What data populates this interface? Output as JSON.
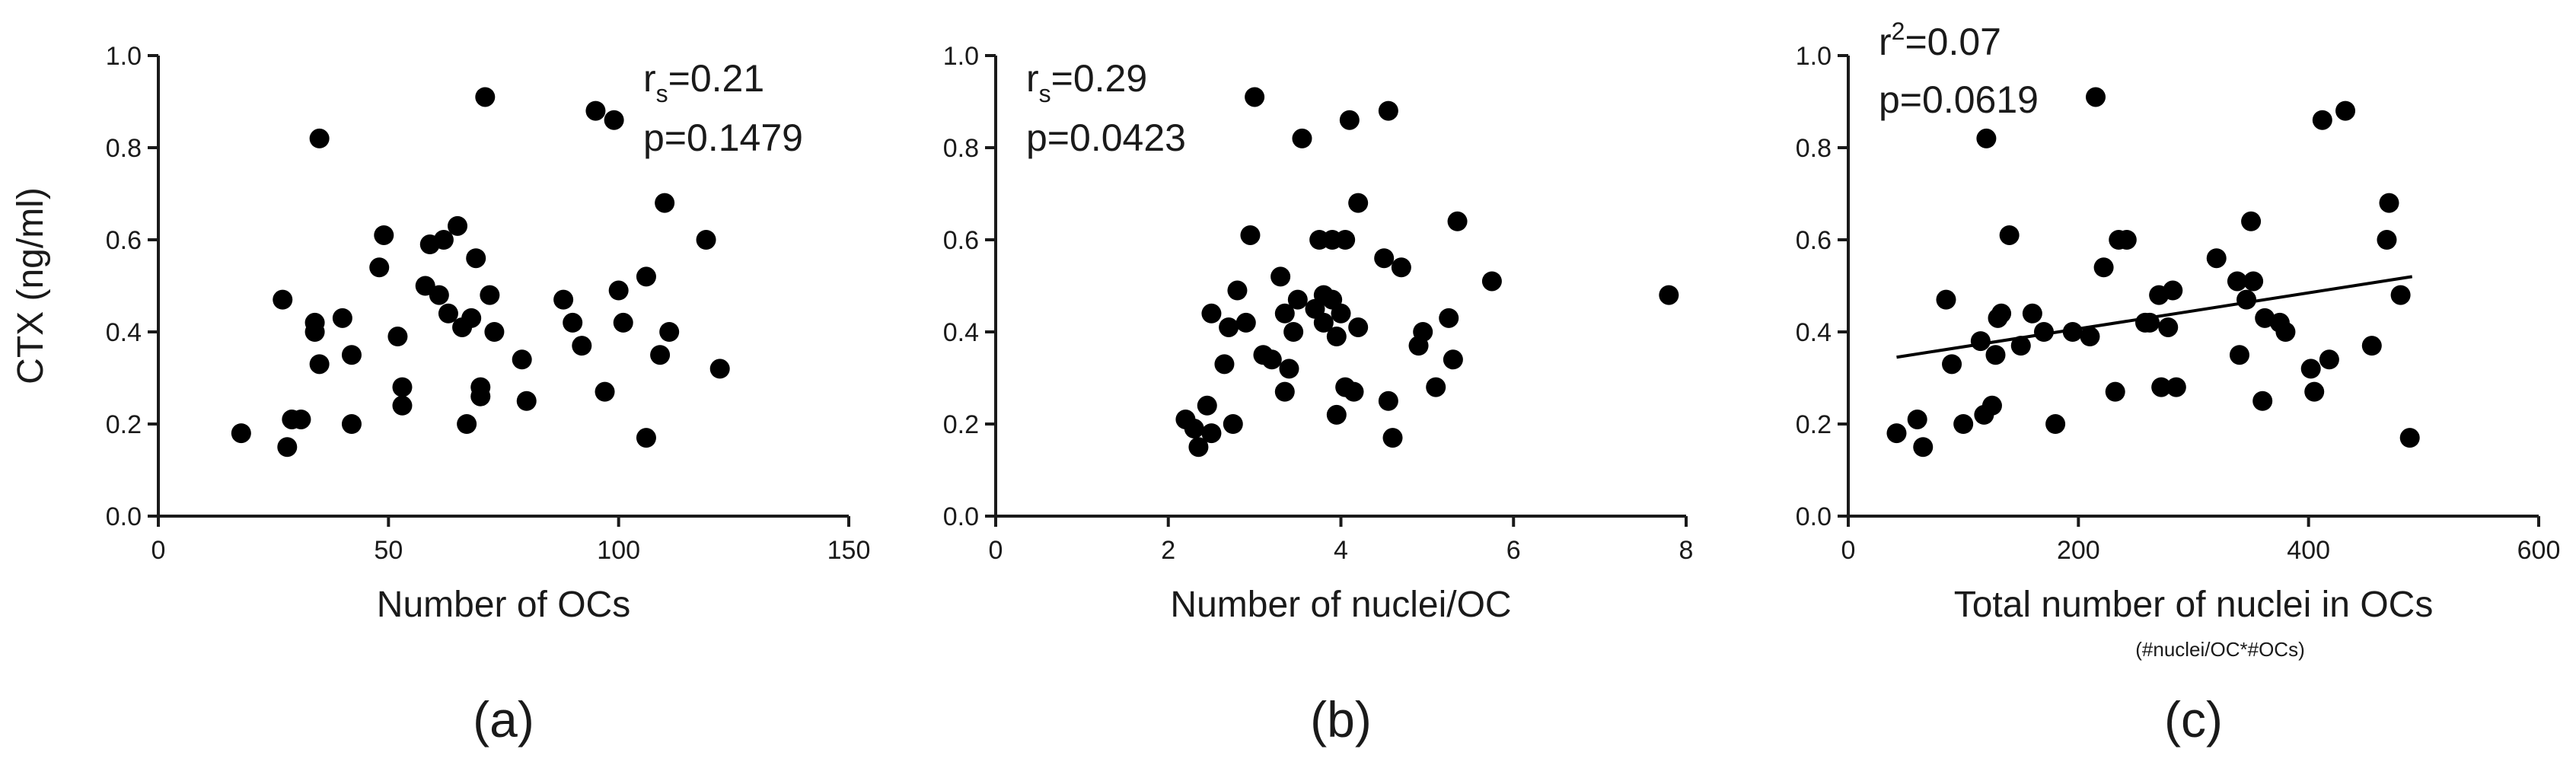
{
  "colors": {
    "marker": "#000000",
    "axis": "#1a1a1a"
  },
  "chart_data": [
    {
      "type": "scatter",
      "panel_label": "(a)",
      "xlabel": "Number of OCs",
      "xsublabel": "",
      "ylabel": "CTX (ng/ml)",
      "xlim": [
        0,
        150
      ],
      "ylim": [
        0.0,
        1.0
      ],
      "x_ticks": [
        0,
        50,
        100,
        150
      ],
      "y_ticks": [
        0.0,
        0.2,
        0.4,
        0.6,
        0.8,
        1.0
      ],
      "x_tick_labels": [
        "0",
        "50",
        "100",
        "150"
      ],
      "y_tick_labels": [
        "0.0",
        "0.2",
        "0.4",
        "0.6",
        "0.8",
        "1.0"
      ],
      "stat_line1": {
        "main": "r",
        "sub": "s",
        "rest": "=0.21"
      },
      "stat_line2": "p=0.1479",
      "stat_position": "top-right",
      "grid": false,
      "fit_line": null,
      "points": [
        [
          18,
          0.18
        ],
        [
          27,
          0.47
        ],
        [
          28,
          0.15
        ],
        [
          29,
          0.21
        ],
        [
          31,
          0.21
        ],
        [
          34,
          0.42
        ],
        [
          34,
          0.4
        ],
        [
          35,
          0.33
        ],
        [
          35,
          0.82
        ],
        [
          40,
          0.43
        ],
        [
          42,
          0.35
        ],
        [
          42,
          0.2
        ],
        [
          48,
          0.54
        ],
        [
          49,
          0.61
        ],
        [
          52,
          0.39
        ],
        [
          53,
          0.24
        ],
        [
          53,
          0.28
        ],
        [
          58,
          0.5
        ],
        [
          59,
          0.59
        ],
        [
          61,
          0.48
        ],
        [
          62,
          0.6
        ],
        [
          63,
          0.44
        ],
        [
          65,
          0.63
        ],
        [
          66,
          0.41
        ],
        [
          67,
          0.2
        ],
        [
          68,
          0.43
        ],
        [
          69,
          0.56
        ],
        [
          70,
          0.28
        ],
        [
          70,
          0.26
        ],
        [
          71,
          0.91
        ],
        [
          72,
          0.48
        ],
        [
          73,
          0.4
        ],
        [
          79,
          0.34
        ],
        [
          80,
          0.25
        ],
        [
          88,
          0.47
        ],
        [
          90,
          0.42
        ],
        [
          92,
          0.37
        ],
        [
          95,
          0.88
        ],
        [
          97,
          0.27
        ],
        [
          99,
          0.86
        ],
        [
          100,
          0.49
        ],
        [
          101,
          0.42
        ],
        [
          106,
          0.17
        ],
        [
          106,
          0.52
        ],
        [
          109,
          0.35
        ],
        [
          110,
          0.68
        ],
        [
          111,
          0.4
        ],
        [
          119,
          0.6
        ],
        [
          122,
          0.32
        ]
      ]
    },
    {
      "type": "scatter",
      "panel_label": "(b)",
      "xlabel": "Number of nuclei/OC",
      "xsublabel": "",
      "ylabel": "",
      "xlim": [
        0,
        8
      ],
      "ylim": [
        0.0,
        1.0
      ],
      "x_ticks": [
        0,
        2,
        4,
        6,
        8
      ],
      "y_ticks": [
        0.0,
        0.2,
        0.4,
        0.6,
        0.8,
        1.0
      ],
      "x_tick_labels": [
        "0",
        "2",
        "4",
        "6",
        "8"
      ],
      "y_tick_labels": [
        "0.0",
        "0.2",
        "0.4",
        "0.6",
        "0.8",
        "1.0"
      ],
      "stat_line1": {
        "main": "r",
        "sub": "s",
        "rest": "=0.29"
      },
      "stat_line2": "p=0.0423",
      "stat_position": "top-left",
      "grid": false,
      "fit_line": null,
      "points": [
        [
          2.2,
          0.21
        ],
        [
          2.3,
          0.19
        ],
        [
          2.35,
          0.15
        ],
        [
          2.45,
          0.24
        ],
        [
          2.5,
          0.18
        ],
        [
          2.5,
          0.44
        ],
        [
          2.65,
          0.33
        ],
        [
          2.7,
          0.41
        ],
        [
          2.75,
          0.2
        ],
        [
          2.8,
          0.49
        ],
        [
          2.9,
          0.42
        ],
        [
          2.95,
          0.61
        ],
        [
          3.0,
          0.91
        ],
        [
          3.1,
          0.35
        ],
        [
          3.2,
          0.34
        ],
        [
          3.3,
          0.52
        ],
        [
          3.35,
          0.44
        ],
        [
          3.35,
          0.27
        ],
        [
          3.4,
          0.32
        ],
        [
          3.45,
          0.4
        ],
        [
          3.5,
          0.47
        ],
        [
          3.55,
          0.82
        ],
        [
          3.7,
          0.45
        ],
        [
          3.75,
          0.6
        ],
        [
          3.8,
          0.48
        ],
        [
          3.8,
          0.42
        ],
        [
          3.9,
          0.47
        ],
        [
          3.9,
          0.6
        ],
        [
          3.95,
          0.39
        ],
        [
          3.95,
          0.22
        ],
        [
          4.0,
          0.44
        ],
        [
          4.05,
          0.28
        ],
        [
          4.05,
          0.6
        ],
        [
          4.1,
          0.86
        ],
        [
          4.15,
          0.27
        ],
        [
          4.2,
          0.68
        ],
        [
          4.2,
          0.41
        ],
        [
          4.5,
          0.56
        ],
        [
          4.55,
          0.88
        ],
        [
          4.55,
          0.25
        ],
        [
          4.6,
          0.17
        ],
        [
          4.7,
          0.54
        ],
        [
          4.9,
          0.37
        ],
        [
          4.95,
          0.4
        ],
        [
          5.1,
          0.28
        ],
        [
          5.25,
          0.43
        ],
        [
          5.3,
          0.34
        ],
        [
          5.35,
          0.64
        ],
        [
          5.75,
          0.51
        ],
        [
          7.8,
          0.48
        ]
      ]
    },
    {
      "type": "scatter",
      "panel_label": "(c)",
      "xlabel": "Total number of nuclei in OCs",
      "xsublabel": "(#nuclei/OC*#OCs)",
      "ylabel": "",
      "xlim": [
        0,
        600
      ],
      "ylim": [
        0.0,
        1.0
      ],
      "x_ticks": [
        0,
        200,
        400,
        600
      ],
      "y_ticks": [
        0.0,
        0.2,
        0.4,
        0.6,
        0.8,
        1.0
      ],
      "x_tick_labels": [
        "0",
        "200",
        "400",
        "600"
      ],
      "y_tick_labels": [
        "0.0",
        "0.2",
        "0.4",
        "0.6",
        "0.8",
        "1.0"
      ],
      "stat_line1": {
        "main": "r",
        "sup": "2",
        "rest": "=0.07"
      },
      "stat_line2": "p=0.0619",
      "stat_position": "top-left",
      "grid": false,
      "fit_line": {
        "x": [
          42,
          490
        ],
        "y": [
          0.345,
          0.52
        ]
      },
      "points": [
        [
          42,
          0.18
        ],
        [
          60,
          0.21
        ],
        [
          65,
          0.15
        ],
        [
          85,
          0.47
        ],
        [
          90,
          0.33
        ],
        [
          100,
          0.2
        ],
        [
          115,
          0.38
        ],
        [
          118,
          0.22
        ],
        [
          120,
          0.82
        ],
        [
          125,
          0.24
        ],
        [
          128,
          0.35
        ],
        [
          130,
          0.43
        ],
        [
          133,
          0.44
        ],
        [
          140,
          0.61
        ],
        [
          150,
          0.37
        ],
        [
          160,
          0.44
        ],
        [
          170,
          0.4
        ],
        [
          180,
          0.2
        ],
        [
          195,
          0.4
        ],
        [
          210,
          0.39
        ],
        [
          215,
          0.91
        ],
        [
          222,
          0.54
        ],
        [
          232,
          0.27
        ],
        [
          235,
          0.6
        ],
        [
          242,
          0.6
        ],
        [
          258,
          0.42
        ],
        [
          262,
          0.42
        ],
        [
          272,
          0.28
        ],
        [
          270,
          0.48
        ],
        [
          278,
          0.41
        ],
        [
          285,
          0.28
        ],
        [
          282,
          0.49
        ],
        [
          320,
          0.56
        ],
        [
          338,
          0.51
        ],
        [
          340,
          0.35
        ],
        [
          346,
          0.47
        ],
        [
          352,
          0.51
        ],
        [
          350,
          0.64
        ],
        [
          360,
          0.25
        ],
        [
          362,
          0.43
        ],
        [
          375,
          0.42
        ],
        [
          380,
          0.4
        ],
        [
          402,
          0.32
        ],
        [
          405,
          0.27
        ],
        [
          412,
          0.86
        ],
        [
          418,
          0.34
        ],
        [
          432,
          0.88
        ],
        [
          455,
          0.37
        ],
        [
          468,
          0.6
        ],
        [
          470,
          0.68
        ],
        [
          480,
          0.48
        ],
        [
          488,
          0.17
        ]
      ]
    }
  ]
}
